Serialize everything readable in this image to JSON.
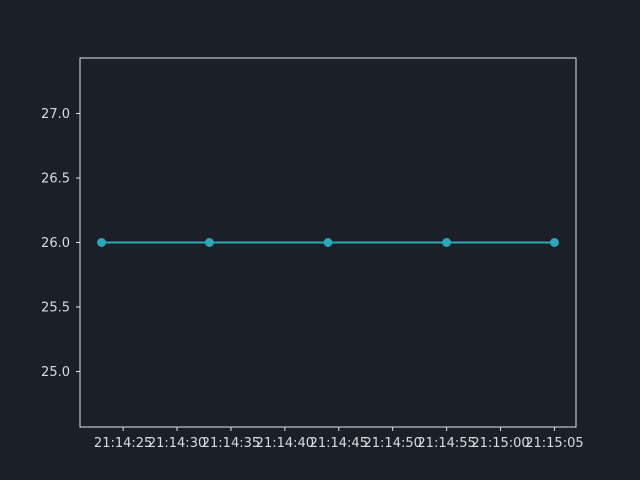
{
  "colors": {
    "background": "#1b1f27",
    "axes_frame": "#e6e6e6",
    "tick_text": "#d8dbe0",
    "series_line": "#2aa7b8"
  },
  "chart_data": {
    "type": "line",
    "title": "",
    "xlabel": "",
    "ylabel": "",
    "x": [
      "21:14:23",
      "21:14:33",
      "21:14:44",
      "21:14:55",
      "21:15:05"
    ],
    "series": [
      {
        "values": [
          26.0,
          26.0,
          26.0,
          26.0,
          26.0
        ],
        "marker": "circle"
      }
    ],
    "xlim": [
      "21:14:21",
      "21:15:07"
    ],
    "ylim": [
      24.57,
      27.43
    ],
    "xticks": [
      "21:14:25",
      "21:14:30",
      "21:14:35",
      "21:14:40",
      "21:14:45",
      "21:14:50",
      "21:14:55",
      "21:15:00",
      "21:15:05"
    ],
    "yticks": [
      "25.0",
      "25.5",
      "26.0",
      "26.5",
      "27.0"
    ],
    "grid": false,
    "legend": "none"
  }
}
